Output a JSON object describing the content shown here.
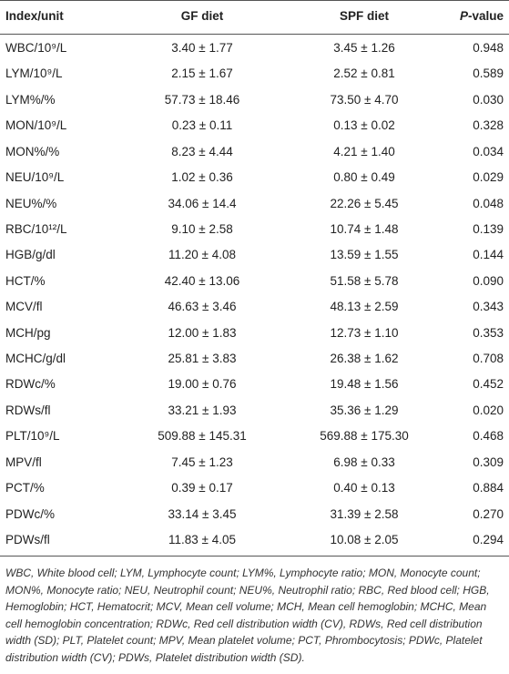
{
  "table": {
    "header": [
      "Index/unit",
      "GF diet",
      "SPF diet",
      {
        "em": "P",
        "text": "-value"
      }
    ],
    "rows": [
      [
        "WBC/10⁹/L",
        "3.40 ± 1.77",
        "3.45 ± 1.26",
        "0.948"
      ],
      [
        "LYM/10⁹/L",
        "2.15 ± 1.67",
        "2.52 ± 0.81",
        "0.589"
      ],
      [
        "LYM%/%",
        "57.73 ± 18.46",
        "73.50 ± 4.70",
        "0.030"
      ],
      [
        "MON/10⁹/L",
        "0.23 ± 0.11",
        "0.13 ± 0.02",
        "0.328"
      ],
      [
        "MON%/%",
        "8.23 ± 4.44",
        "4.21 ± 1.40",
        "0.034"
      ],
      [
        "NEU/10⁹/L",
        "1.02 ± 0.36",
        "0.80 ± 0.49",
        "0.029"
      ],
      [
        "NEU%/%",
        "34.06 ± 14.4",
        "22.26 ± 5.45",
        "0.048"
      ],
      [
        "RBC/10¹²/L",
        "9.10 ± 2.58",
        "10.74 ± 1.48",
        "0.139"
      ],
      [
        "HGB/g/dl",
        "11.20 ± 4.08",
        "13.59 ± 1.55",
        "0.144"
      ],
      [
        "HCT/%",
        "42.40 ± 13.06",
        "51.58 ± 5.78",
        "0.090"
      ],
      [
        "MCV/fl",
        "46.63 ± 3.46",
        "48.13 ± 2.59",
        "0.343"
      ],
      [
        "MCH/pg",
        "12.00 ± 1.83",
        "12.73 ± 1.10",
        "0.353"
      ],
      [
        "MCHC/g/dl",
        "25.81 ± 3.83",
        "26.38 ± 1.62",
        "0.708"
      ],
      [
        "RDWc/%",
        "19.00 ± 0.76",
        "19.48 ± 1.56",
        "0.452"
      ],
      [
        "RDWs/fl",
        "33.21 ± 1.93",
        "35.36 ± 1.29",
        "0.020"
      ],
      [
        "PLT/10⁹/L",
        "509.88 ± 145.31",
        "569.88 ± 175.30",
        "0.468"
      ],
      [
        "MPV/fl",
        "7.45 ± 1.23",
        "6.98 ± 0.33",
        "0.309"
      ],
      [
        "PCT/%",
        "0.39 ± 0.17",
        "0.40 ± 0.13",
        "0.884"
      ],
      [
        "PDWc/%",
        "33.14 ± 3.45",
        "31.39 ± 2.58",
        "0.270"
      ],
      [
        "PDWs/fl",
        "11.83 ± 4.05",
        "10.08 ± 2.05",
        "0.294"
      ]
    ],
    "footnote": "WBC, White blood cell; LYM, Lymphocyte count; LYM%, Lymphocyte ratio; MON, Monocyte count; MON%, Monocyte ratio; NEU, Neutrophil count; NEU%, Neutrophil ratio; RBC, Red blood cell; HGB, Hemoglobin; HCT, Hematocrit; MCV, Mean cell volume; MCH, Mean cell hemoglobin; MCHC, Mean cell hemoglobin concentration; RDWc, Red cell distribution width (CV), RDWs, Red cell distribution width (SD); PLT, Platelet count; MPV, Mean platelet volume; PCT, Phrombocytosis; PDWc, Platelet distribution width (CV); PDWs, Platelet distribution width (SD)."
  }
}
